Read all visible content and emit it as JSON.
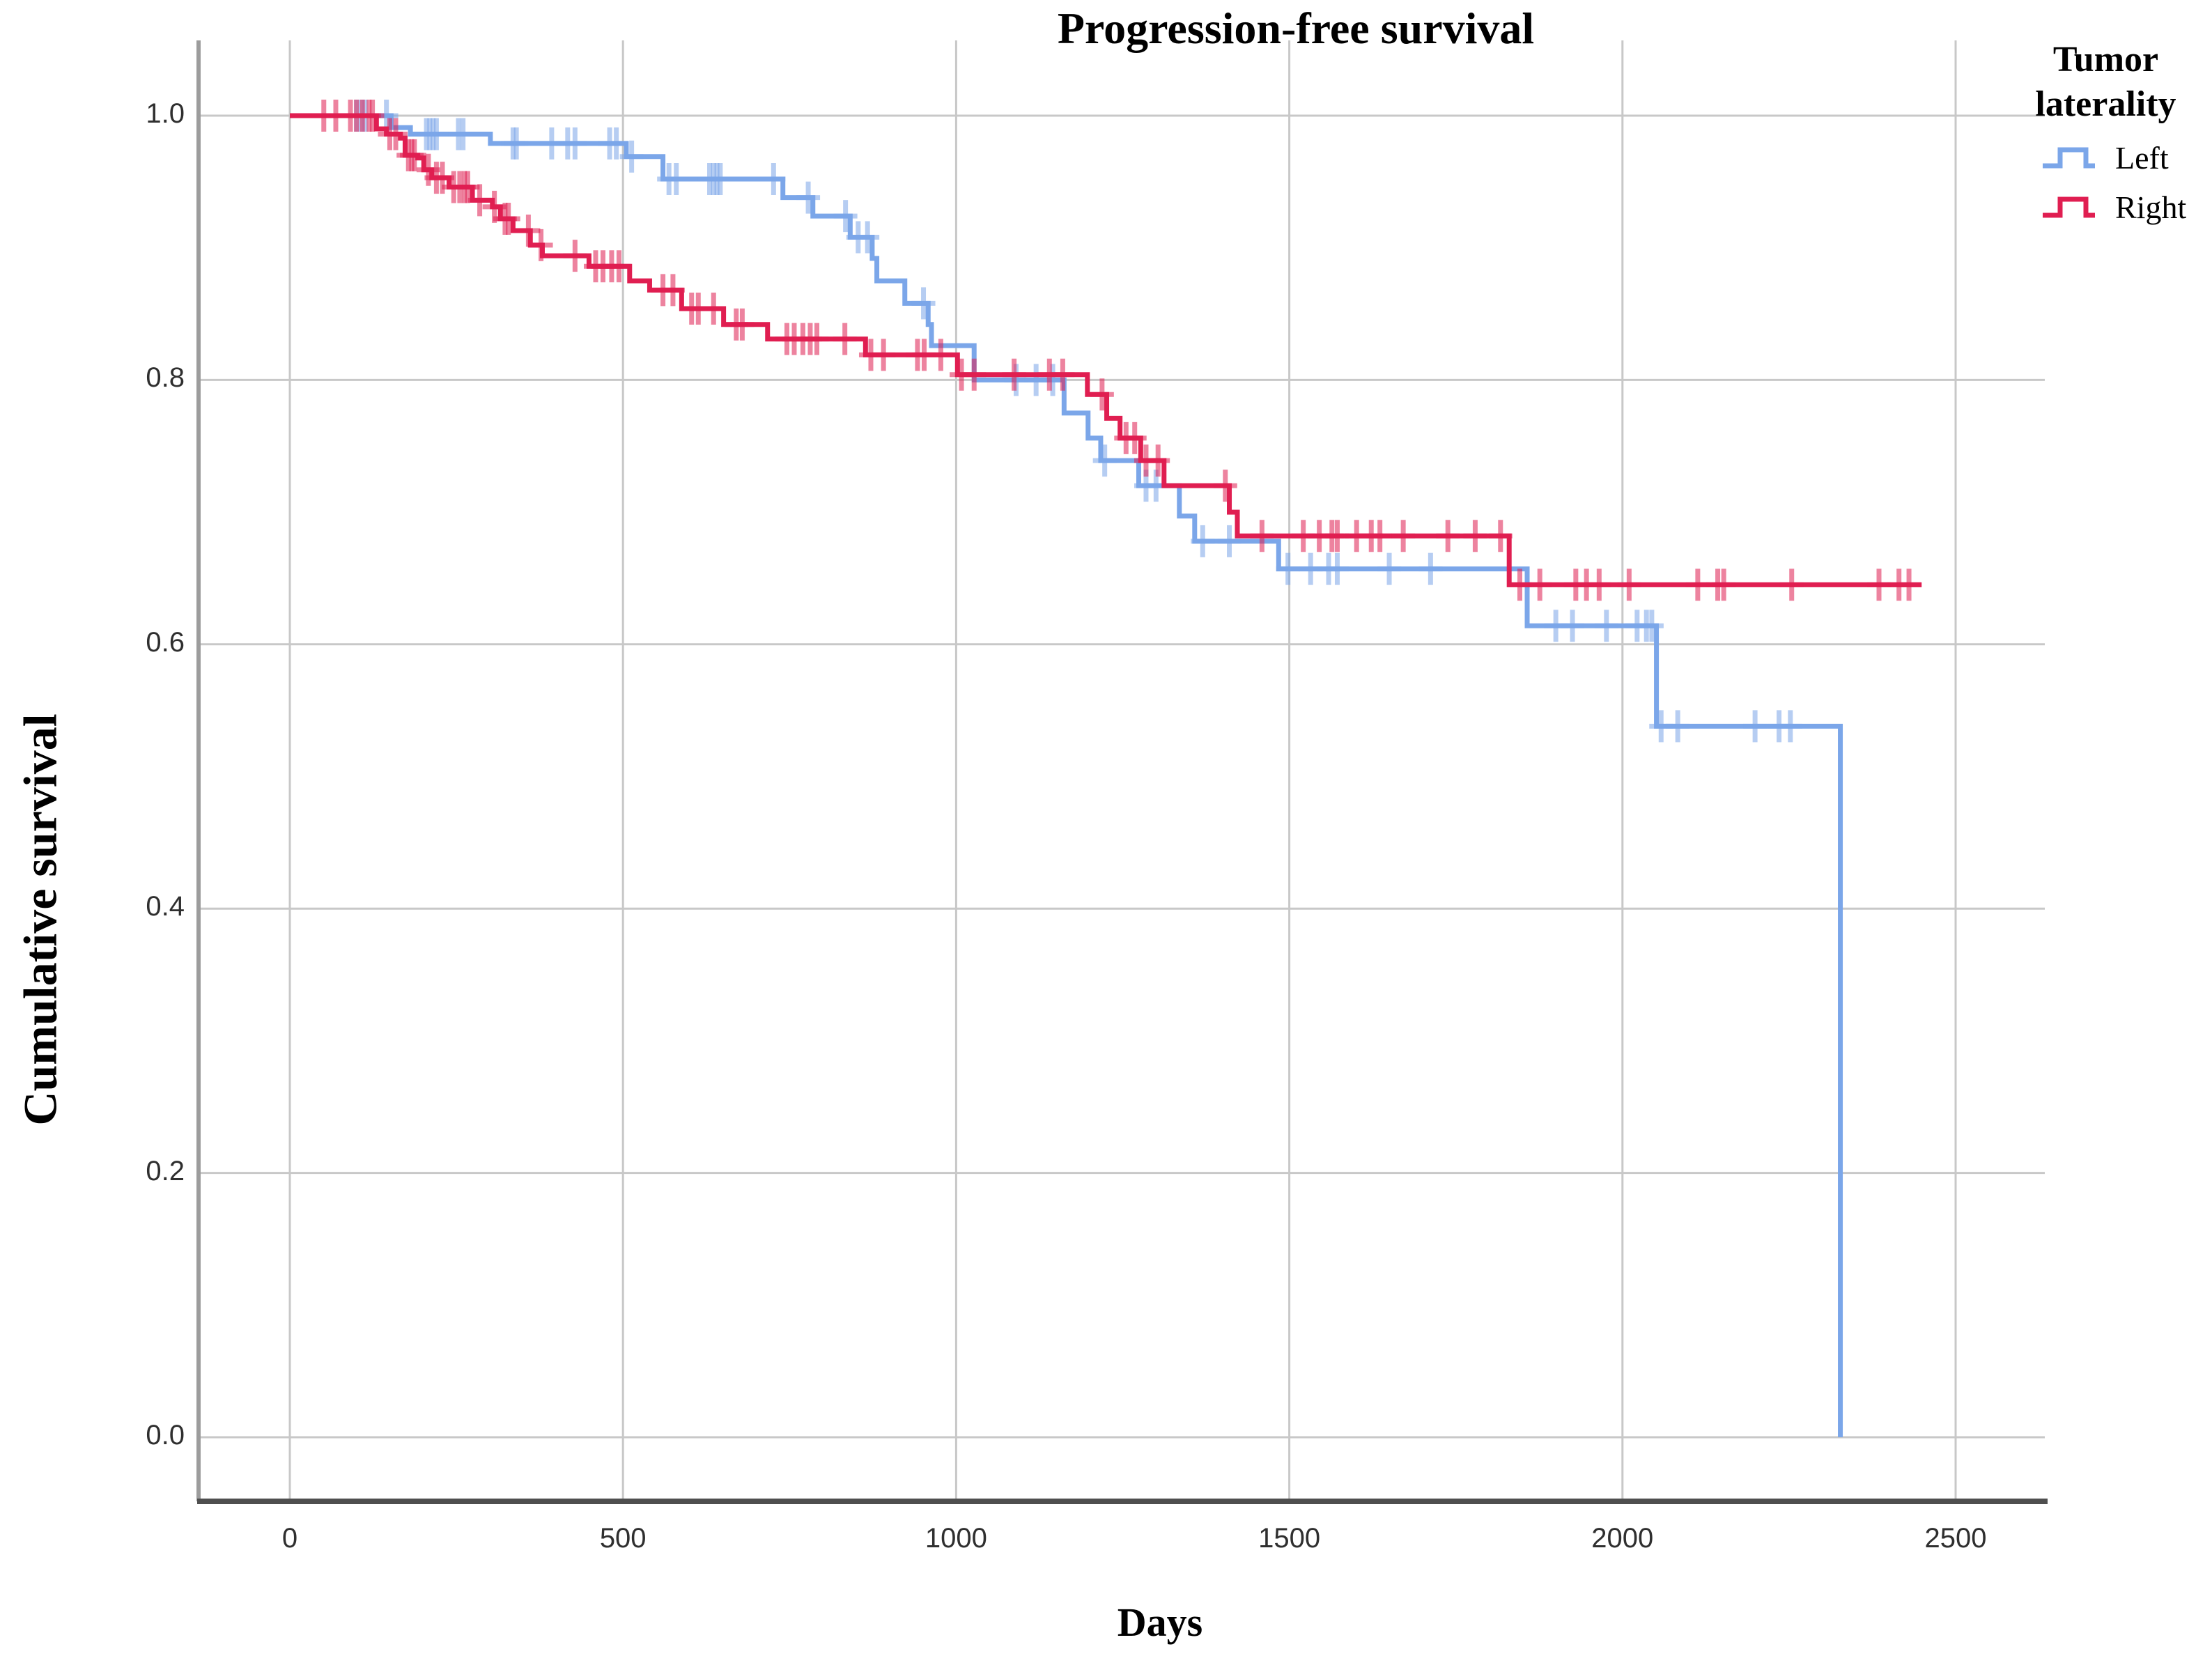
{
  "title": "Progression-free survival",
  "x_axis": {
    "label": "Days",
    "ticks": [
      {
        "label": "0",
        "value": 0
      },
      {
        "label": "500",
        "value": 500
      },
      {
        "label": "1000",
        "value": 1000
      },
      {
        "label": "1500",
        "value": 1500
      },
      {
        "label": "2000",
        "value": 2000
      },
      {
        "label": "2500",
        "value": 2500
      }
    ]
  },
  "y_axis": {
    "label": "Cumulative survival",
    "ticks": [
      {
        "label": "1.0",
        "value": 1.0
      },
      {
        "label": "0.8",
        "value": 0.8
      },
      {
        "label": "0.6",
        "value": 0.6
      },
      {
        "label": "0.4",
        "value": 0.4
      },
      {
        "label": "0.2",
        "value": 0.2
      },
      {
        "label": "0.0",
        "value": 0.0
      }
    ]
  },
  "legend": {
    "title_line1": "Tumor",
    "title_line2": "laterality",
    "items": [
      {
        "label": "Left",
        "color": "#7BA6E9"
      },
      {
        "label": "Right",
        "color": "#E01E51"
      }
    ]
  },
  "colors": {
    "left_series": "#7BA6E9",
    "right_series": "#E01E51",
    "grid": "#C8C8C8",
    "y_axis_line": "#9C9C9C",
    "x_axis_line": "#4F4F4F",
    "tick_text": "#2f2f2f"
  },
  "chart_data": {
    "type": "line",
    "variant": "kaplan_meier_step",
    "title": "Progression-free survival",
    "xlabel": "Days",
    "ylabel": "Cumulative survival",
    "xlim": [
      0,
      2500
    ],
    "ylim": [
      0.0,
      1.0
    ],
    "grid": true,
    "legend_position": "top-right-outside",
    "legend_title": "Tumor laterality",
    "series": [
      {
        "name": "Left",
        "color": "#7BA6E9",
        "steps": [
          [
            0,
            1.0
          ],
          [
            152,
            0.991
          ],
          [
            181,
            0.986
          ],
          [
            301,
            0.979
          ],
          [
            505,
            0.969
          ],
          [
            560,
            0.952
          ],
          [
            740,
            0.938
          ],
          [
            785,
            0.924
          ],
          [
            841,
            0.908
          ],
          [
            874,
            0.892
          ],
          [
            881,
            0.875
          ],
          [
            923,
            0.858
          ],
          [
            958,
            0.842
          ],
          [
            963,
            0.826
          ],
          [
            1027,
            0.8
          ],
          [
            1162,
            0.775
          ],
          [
            1198,
            0.756
          ],
          [
            1217,
            0.739
          ],
          [
            1274,
            0.72
          ],
          [
            1335,
            0.697
          ],
          [
            1358,
            0.678
          ],
          [
            1484,
            0.657
          ],
          [
            1857,
            0.614
          ],
          [
            2051,
            0.538
          ],
          [
            2327,
            0.0
          ]
        ],
        "censors": [
          [
            100,
            1.0
          ],
          [
            107,
            1.0
          ],
          [
            113,
            1.0
          ],
          [
            145,
            1.0
          ],
          [
            205,
            0.986
          ],
          [
            210,
            0.986
          ],
          [
            215,
            0.986
          ],
          [
            220,
            0.986
          ],
          [
            253,
            0.986
          ],
          [
            260,
            0.986
          ],
          [
            335,
            0.979
          ],
          [
            340,
            0.979
          ],
          [
            393,
            0.979
          ],
          [
            417,
            0.979
          ],
          [
            428,
            0.979
          ],
          [
            480,
            0.979
          ],
          [
            490,
            0.979
          ],
          [
            513,
            0.969
          ],
          [
            569,
            0.952
          ],
          [
            580,
            0.952
          ],
          [
            630,
            0.952
          ],
          [
            636,
            0.952
          ],
          [
            641,
            0.952
          ],
          [
            646,
            0.952
          ],
          [
            726,
            0.952
          ],
          [
            778,
            0.938
          ],
          [
            834,
            0.924
          ],
          [
            853,
            0.908
          ],
          [
            867,
            0.908
          ],
          [
            951,
            0.858
          ],
          [
            1090,
            0.8
          ],
          [
            1120,
            0.8
          ],
          [
            1145,
            0.8
          ],
          [
            1223,
            0.739
          ],
          [
            1285,
            0.72
          ],
          [
            1300,
            0.72
          ],
          [
            1370,
            0.678
          ],
          [
            1410,
            0.678
          ],
          [
            1498,
            0.657
          ],
          [
            1532,
            0.657
          ],
          [
            1559,
            0.657
          ],
          [
            1572,
            0.657
          ],
          [
            1650,
            0.657
          ],
          [
            1712,
            0.657
          ],
          [
            1900,
            0.614
          ],
          [
            1925,
            0.614
          ],
          [
            1976,
            0.614
          ],
          [
            2022,
            0.614
          ],
          [
            2036,
            0.614
          ],
          [
            2044,
            0.614
          ],
          [
            2058,
            0.538
          ],
          [
            2083,
            0.538
          ],
          [
            2199,
            0.538
          ],
          [
            2235,
            0.538
          ],
          [
            2252,
            0.538
          ]
        ]
      },
      {
        "name": "Right",
        "color": "#E01E51",
        "steps": [
          [
            0,
            1.0
          ],
          [
            130,
            0.99
          ],
          [
            145,
            0.986
          ],
          [
            166,
            0.983
          ],
          [
            173,
            0.97
          ],
          [
            192,
            0.968
          ],
          [
            201,
            0.959
          ],
          [
            213,
            0.953
          ],
          [
            239,
            0.946
          ],
          [
            274,
            0.936
          ],
          [
            304,
            0.931
          ],
          [
            316,
            0.922
          ],
          [
            335,
            0.913
          ],
          [
            361,
            0.902
          ],
          [
            379,
            0.894
          ],
          [
            449,
            0.886
          ],
          [
            510,
            0.875
          ],
          [
            540,
            0.868
          ],
          [
            588,
            0.854
          ],
          [
            651,
            0.842
          ],
          [
            717,
            0.831
          ],
          [
            864,
            0.819
          ],
          [
            1002,
            0.804
          ],
          [
            1197,
            0.789
          ],
          [
            1226,
            0.771
          ],
          [
            1246,
            0.756
          ],
          [
            1277,
            0.739
          ],
          [
            1312,
            0.72
          ],
          [
            1410,
            0.7
          ],
          [
            1422,
            0.682
          ],
          [
            1830,
            0.645
          ],
          [
            2449,
            0.645
          ]
        ],
        "censors": [
          [
            51,
            1.0
          ],
          [
            69,
            1.0
          ],
          [
            91,
            1.0
          ],
          [
            100,
            1.0
          ],
          [
            109,
            1.0
          ],
          [
            119,
            1.0
          ],
          [
            124,
            1.0
          ],
          [
            150,
            0.986
          ],
          [
            159,
            0.986
          ],
          [
            178,
            0.97
          ],
          [
            183,
            0.97
          ],
          [
            187,
            0.97
          ],
          [
            208,
            0.959
          ],
          [
            220,
            0.953
          ],
          [
            229,
            0.953
          ],
          [
            246,
            0.946
          ],
          [
            255,
            0.946
          ],
          [
            262,
            0.946
          ],
          [
            267,
            0.946
          ],
          [
            285,
            0.936
          ],
          [
            307,
            0.931
          ],
          [
            323,
            0.922
          ],
          [
            328,
            0.922
          ],
          [
            358,
            0.913
          ],
          [
            377,
            0.902
          ],
          [
            428,
            0.894
          ],
          [
            459,
            0.886
          ],
          [
            470,
            0.886
          ],
          [
            483,
            0.886
          ],
          [
            494,
            0.886
          ],
          [
            560,
            0.868
          ],
          [
            575,
            0.868
          ],
          [
            603,
            0.854
          ],
          [
            613,
            0.854
          ],
          [
            636,
            0.854
          ],
          [
            670,
            0.842
          ],
          [
            679,
            0.842
          ],
          [
            746,
            0.831
          ],
          [
            757,
            0.831
          ],
          [
            770,
            0.831
          ],
          [
            781,
            0.831
          ],
          [
            791,
            0.831
          ],
          [
            833,
            0.831
          ],
          [
            872,
            0.819
          ],
          [
            891,
            0.819
          ],
          [
            942,
            0.819
          ],
          [
            952,
            0.819
          ],
          [
            977,
            0.819
          ],
          [
            1008,
            0.804
          ],
          [
            1027,
            0.804
          ],
          [
            1087,
            0.804
          ],
          [
            1140,
            0.804
          ],
          [
            1160,
            0.804
          ],
          [
            1219,
            0.789
          ],
          [
            1255,
            0.756
          ],
          [
            1268,
            0.756
          ],
          [
            1285,
            0.739
          ],
          [
            1303,
            0.739
          ],
          [
            1404,
            0.72
          ],
          [
            1459,
            0.682
          ],
          [
            1521,
            0.682
          ],
          [
            1545,
            0.682
          ],
          [
            1564,
            0.682
          ],
          [
            1572,
            0.682
          ],
          [
            1601,
            0.682
          ],
          [
            1623,
            0.682
          ],
          [
            1636,
            0.682
          ],
          [
            1671,
            0.682
          ],
          [
            1738,
            0.682
          ],
          [
            1779,
            0.682
          ],
          [
            1817,
            0.682
          ],
          [
            1846,
            0.645
          ],
          [
            1876,
            0.645
          ],
          [
            1930,
            0.645
          ],
          [
            1946,
            0.645
          ],
          [
            1965,
            0.645
          ],
          [
            2010,
            0.645
          ],
          [
            2113,
            0.645
          ],
          [
            2143,
            0.645
          ],
          [
            2152,
            0.645
          ],
          [
            2254,
            0.645
          ],
          [
            2385,
            0.645
          ],
          [
            2415,
            0.645
          ],
          [
            2430,
            0.645
          ]
        ]
      }
    ]
  }
}
